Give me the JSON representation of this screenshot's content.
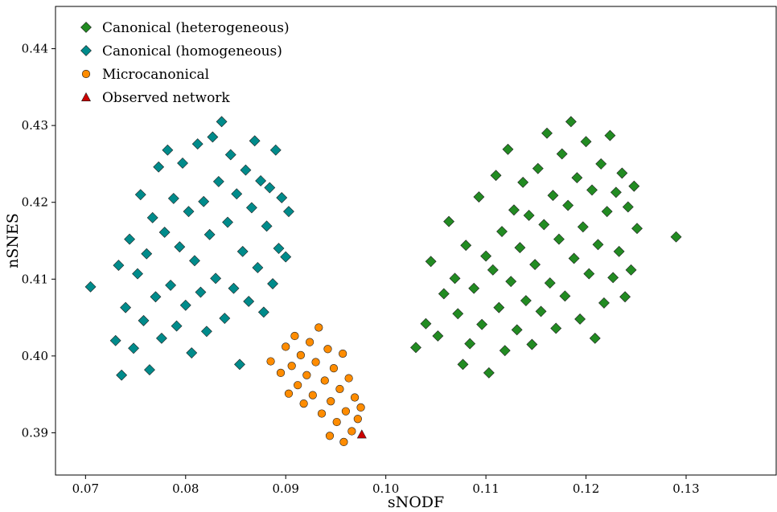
{
  "chart_data": {
    "type": "scatter",
    "xlabel": "sNODF",
    "ylabel": "nSNES",
    "xlim": [
      0.067,
      0.139
    ],
    "ylim": [
      0.3845,
      0.4455
    ],
    "xticks": [
      0.07,
      0.08,
      0.09,
      0.1,
      0.11,
      0.12,
      0.13
    ],
    "xtick_labels": [
      "0.07",
      "0.08",
      "0.09",
      "0.10",
      "0.11",
      "0.12",
      "0.13"
    ],
    "yticks": [
      0.39,
      0.4,
      0.41,
      0.42,
      0.43,
      0.44
    ],
    "ytick_labels": [
      "0.39",
      "0.40",
      "0.41",
      "0.42",
      "0.43",
      "0.44"
    ],
    "grid": false,
    "legend_position": "top-left",
    "series": [
      {
        "name": "Canonical (heterogeneous)",
        "marker": "diamond",
        "color": "#228B22",
        "points": [
          [
            0.103,
            0.4011
          ],
          [
            0.104,
            0.4042
          ],
          [
            0.1045,
            0.4123
          ],
          [
            0.1052,
            0.4026
          ],
          [
            0.1058,
            0.4081
          ],
          [
            0.1063,
            0.4175
          ],
          [
            0.1069,
            0.4101
          ],
          [
            0.1072,
            0.4055
          ],
          [
            0.1077,
            0.3989
          ],
          [
            0.108,
            0.4144
          ],
          [
            0.1084,
            0.4016
          ],
          [
            0.1088,
            0.4088
          ],
          [
            0.1093,
            0.4207
          ],
          [
            0.1096,
            0.4041
          ],
          [
            0.11,
            0.413
          ],
          [
            0.1103,
            0.3978
          ],
          [
            0.1107,
            0.4112
          ],
          [
            0.111,
            0.4235
          ],
          [
            0.1113,
            0.4063
          ],
          [
            0.1116,
            0.4162
          ],
          [
            0.1119,
            0.4007
          ],
          [
            0.1122,
            0.4269
          ],
          [
            0.1125,
            0.4097
          ],
          [
            0.1128,
            0.419
          ],
          [
            0.1131,
            0.4034
          ],
          [
            0.1134,
            0.4141
          ],
          [
            0.1137,
            0.4226
          ],
          [
            0.114,
            0.4072
          ],
          [
            0.1143,
            0.4183
          ],
          [
            0.1146,
            0.4015
          ],
          [
            0.1149,
            0.4119
          ],
          [
            0.1152,
            0.4244
          ],
          [
            0.1155,
            0.4058
          ],
          [
            0.1158,
            0.4171
          ],
          [
            0.1161,
            0.429
          ],
          [
            0.1164,
            0.4095
          ],
          [
            0.1167,
            0.4209
          ],
          [
            0.117,
            0.4036
          ],
          [
            0.1173,
            0.4152
          ],
          [
            0.1176,
            0.4263
          ],
          [
            0.1179,
            0.4078
          ],
          [
            0.1182,
            0.4196
          ],
          [
            0.1185,
            0.4305
          ],
          [
            0.1188,
            0.4127
          ],
          [
            0.1191,
            0.4232
          ],
          [
            0.1194,
            0.4048
          ],
          [
            0.1197,
            0.4168
          ],
          [
            0.12,
            0.4279
          ],
          [
            0.1203,
            0.4107
          ],
          [
            0.1206,
            0.4216
          ],
          [
            0.1209,
            0.4023
          ],
          [
            0.1212,
            0.4145
          ],
          [
            0.1215,
            0.425
          ],
          [
            0.1218,
            0.4069
          ],
          [
            0.1221,
            0.4188
          ],
          [
            0.1224,
            0.4287
          ],
          [
            0.1227,
            0.4102
          ],
          [
            0.123,
            0.4213
          ],
          [
            0.1233,
            0.4136
          ],
          [
            0.1236,
            0.4238
          ],
          [
            0.1239,
            0.4077
          ],
          [
            0.1242,
            0.4194
          ],
          [
            0.1245,
            0.4112
          ],
          [
            0.1248,
            0.4221
          ],
          [
            0.1251,
            0.4166
          ],
          [
            0.129,
            0.4155
          ]
        ]
      },
      {
        "name": "Canonical (homogeneous)",
        "marker": "diamond",
        "color": "#008B8B",
        "points": [
          [
            0.0705,
            0.409
          ],
          [
            0.073,
            0.402
          ],
          [
            0.0733,
            0.4118
          ],
          [
            0.0736,
            0.3975
          ],
          [
            0.074,
            0.4063
          ],
          [
            0.0744,
            0.4152
          ],
          [
            0.0748,
            0.401
          ],
          [
            0.0752,
            0.4107
          ],
          [
            0.0755,
            0.421
          ],
          [
            0.0758,
            0.4046
          ],
          [
            0.0761,
            0.4133
          ],
          [
            0.0764,
            0.3982
          ],
          [
            0.0767,
            0.418
          ],
          [
            0.077,
            0.4077
          ],
          [
            0.0773,
            0.4246
          ],
          [
            0.0776,
            0.4023
          ],
          [
            0.0779,
            0.4161
          ],
          [
            0.0782,
            0.4268
          ],
          [
            0.0785,
            0.4092
          ],
          [
            0.0788,
            0.4205
          ],
          [
            0.0791,
            0.4039
          ],
          [
            0.0794,
            0.4142
          ],
          [
            0.0797,
            0.4251
          ],
          [
            0.08,
            0.4066
          ],
          [
            0.0803,
            0.4188
          ],
          [
            0.0806,
            0.4004
          ],
          [
            0.0809,
            0.4124
          ],
          [
            0.0812,
            0.4276
          ],
          [
            0.0815,
            0.4083
          ],
          [
            0.0818,
            0.4201
          ],
          [
            0.0821,
            0.4032
          ],
          [
            0.0824,
            0.4158
          ],
          [
            0.0827,
            0.4285
          ],
          [
            0.083,
            0.4101
          ],
          [
            0.0833,
            0.4227
          ],
          [
            0.0836,
            0.4305
          ],
          [
            0.0839,
            0.4049
          ],
          [
            0.0842,
            0.4174
          ],
          [
            0.0845,
            0.4262
          ],
          [
            0.0848,
            0.4088
          ],
          [
            0.0851,
            0.4211
          ],
          [
            0.0854,
            0.3989
          ],
          [
            0.0857,
            0.4136
          ],
          [
            0.086,
            0.4242
          ],
          [
            0.0863,
            0.4071
          ],
          [
            0.0866,
            0.4193
          ],
          [
            0.0869,
            0.428
          ],
          [
            0.0872,
            0.4115
          ],
          [
            0.0875,
            0.4228
          ],
          [
            0.0878,
            0.4057
          ],
          [
            0.0881,
            0.4169
          ],
          [
            0.0884,
            0.4219
          ],
          [
            0.0887,
            0.4094
          ],
          [
            0.089,
            0.4268
          ],
          [
            0.0893,
            0.414
          ],
          [
            0.0896,
            0.4206
          ],
          [
            0.09,
            0.4129
          ],
          [
            0.0903,
            0.4188
          ]
        ]
      },
      {
        "name": "Microcanonical",
        "marker": "circle",
        "color": "#FF8C00",
        "points": [
          [
            0.0885,
            0.3993
          ],
          [
            0.0895,
            0.3978
          ],
          [
            0.09,
            0.4012
          ],
          [
            0.0903,
            0.3951
          ],
          [
            0.0906,
            0.3987
          ],
          [
            0.0909,
            0.4026
          ],
          [
            0.0912,
            0.3962
          ],
          [
            0.0915,
            0.4001
          ],
          [
            0.0918,
            0.3938
          ],
          [
            0.0921,
            0.3975
          ],
          [
            0.0924,
            0.4018
          ],
          [
            0.0927,
            0.3949
          ],
          [
            0.093,
            0.3992
          ],
          [
            0.0933,
            0.4037
          ],
          [
            0.0936,
            0.3925
          ],
          [
            0.0939,
            0.3968
          ],
          [
            0.0942,
            0.4009
          ],
          [
            0.0945,
            0.3941
          ],
          [
            0.0948,
            0.3984
          ],
          [
            0.0951,
            0.3914
          ],
          [
            0.0954,
            0.3957
          ],
          [
            0.0957,
            0.4003
          ],
          [
            0.096,
            0.3928
          ],
          [
            0.0963,
            0.3971
          ],
          [
            0.0966,
            0.3902
          ],
          [
            0.0969,
            0.3946
          ],
          [
            0.0972,
            0.3918
          ],
          [
            0.0975,
            0.3933
          ],
          [
            0.0958,
            0.3888
          ],
          [
            0.0944,
            0.3896
          ]
        ]
      },
      {
        "name": "Observed network",
        "marker": "triangle",
        "color": "#CC0000",
        "points": [
          [
            0.0976,
            0.3898
          ]
        ]
      }
    ]
  }
}
